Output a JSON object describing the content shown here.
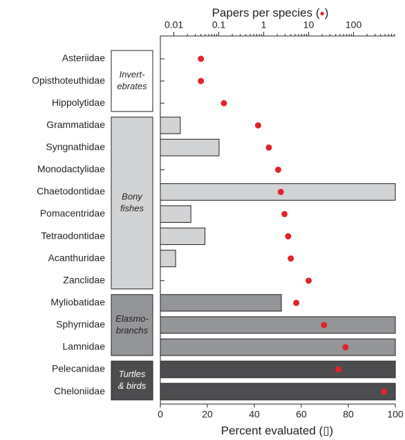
{
  "chart_data": {
    "type": "bar",
    "categories": [
      "Asteriidae",
      "Opisthoteuthidae",
      "Hippolytidae",
      "Grammatidae",
      "Syngnathidae",
      "Monodactylidae",
      "Chaetodontidae",
      "Pomacentridae",
      "Tetraodontidae",
      "Acanthuridae",
      "Zanclidae",
      "Myliobatidae",
      "Sphyrnidae",
      "Lamnidae",
      "Pelecanidae",
      "Cheloniidae"
    ],
    "groups": [
      {
        "lines": [
          "Invert-",
          "ebrates"
        ],
        "start": 0,
        "end": 2,
        "color": "#ffffff",
        "text_color": "#231f20"
      },
      {
        "lines": [
          "Bony",
          "fishes"
        ],
        "start": 3,
        "end": 10,
        "color": "#d1d3d4",
        "text_color": "#231f20"
      },
      {
        "lines": [
          "Elasmo-",
          "branchs"
        ],
        "start": 11,
        "end": 13,
        "color": "#939598",
        "text_color": "#231f20"
      },
      {
        "lines": [
          "Turtles",
          "& birds"
        ],
        "start": 14,
        "end": 15,
        "color": "#4d4d4f",
        "text_color": "#ffffff"
      }
    ],
    "series": [
      {
        "name": "Percent evaluated",
        "values": [
          0,
          0,
          0,
          8.5,
          25,
          0,
          100,
          13,
          19,
          6.5,
          0,
          51.5,
          100,
          100,
          100,
          100
        ]
      },
      {
        "name": "Papers per species",
        "axis": "x2",
        "color": "#e0242b",
        "values": [
          0.04,
          0.04,
          0.13,
          0.75,
          1.3,
          2.1,
          2.4,
          2.9,
          3.5,
          4,
          10,
          5.3,
          22,
          66,
          46,
          475
        ]
      }
    ],
    "xlabel_parts": [
      "Percent evaluated (",
      "▯",
      ")"
    ],
    "x2label_parts": [
      "Papers per species (",
      "●",
      ")"
    ],
    "xlim": [
      0,
      100
    ],
    "xticks": [
      0,
      20,
      40,
      60,
      80,
      100
    ],
    "x2lim": [
      0.005,
      850
    ],
    "x2scale": "log",
    "x2ticks": [
      0.01,
      0.1,
      1,
      10,
      100
    ],
    "x2minorticks": [
      0.02,
      0.03,
      0.04,
      0.05,
      0.06,
      0.07,
      0.08,
      0.09,
      0.2,
      0.3,
      0.4,
      0.5,
      0.6,
      0.7,
      0.8,
      0.9,
      2,
      3,
      4,
      5,
      6,
      7,
      8,
      9,
      20,
      30,
      40,
      50,
      60,
      70,
      80,
      90,
      200,
      300,
      400,
      500,
      600,
      700,
      800
    ]
  }
}
